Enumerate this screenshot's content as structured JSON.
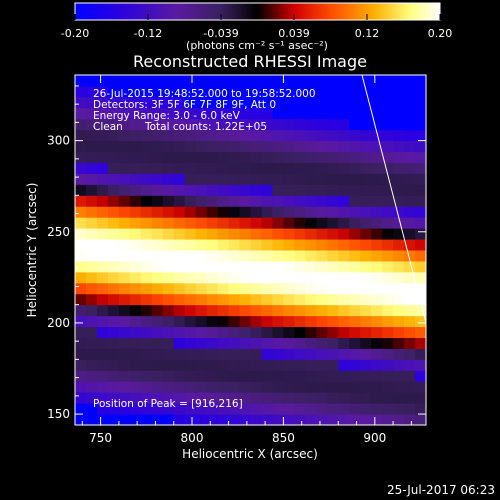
{
  "chart_data": {
    "type": "heatmap",
    "title": "Reconstructed RHESSI Image",
    "xlabel": "Heliocentric X (arcsec)",
    "ylabel": "Heliocentric Y (arcsec)",
    "xlim": [
      736,
      928
    ],
    "ylim": [
      144,
      336
    ],
    "x_ticks": [
      750,
      800,
      850,
      900
    ],
    "y_ticks": [
      150,
      200,
      250,
      300
    ],
    "colorbar": {
      "ticks": [
        "-0.20",
        "-0.12",
        "-0.039",
        "0.039",
        "0.12",
        "0.20"
      ],
      "range": [
        -0.2,
        0.2
      ],
      "unit_label": "(photons cm⁻² s⁻¹ asec⁻²)",
      "colormap": [
        "#0000ff",
        "#3a00d4",
        "#5a1aa0",
        "#4a2a70",
        "#000000",
        "#ff0000",
        "#ff6a00",
        "#ffd000",
        "#ffffe0",
        "#ffffff"
      ]
    },
    "annotations": {
      "time_range": "26-Jul-2015 19:48:52.000 to 19:58:52.000",
      "detectors": "Detectors: 3F 5F 6F 7F 8F 9F, Att 0",
      "energy": "Energy Range: 3.0 - 6.0 keV",
      "clean": "Clean",
      "total_counts": "Total counts: 1.22E+05",
      "peak": "Position of Peak = [916,216]"
    },
    "peak": {
      "x": 916,
      "y": 216
    },
    "limb_line": [
      [
        893,
        336
      ],
      [
        928,
        200
      ]
    ],
    "image_model": {
      "band_center_at_x": [
        [
          736,
          242
        ],
        [
          928,
          216
        ]
      ],
      "band_halfwidth": 35,
      "background": -0.2,
      "peak_value": 0.2
    }
  },
  "footer": {
    "date": "25-Jul-2017 06:23"
  }
}
